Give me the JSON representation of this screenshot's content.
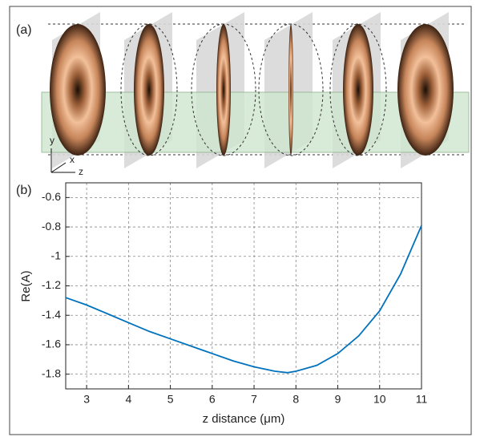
{
  "figure_a": {
    "label": "(a)",
    "axis_labels": {
      "y": "y",
      "x": "x",
      "z": "z"
    }
  },
  "chart_data": {
    "type": "line",
    "panel_label": "(b)",
    "xlabel": "z distance (μm)",
    "ylabel": "Re(A)",
    "x": [
      2.5,
      3,
      3.5,
      4,
      4.5,
      5,
      5.5,
      6,
      6.5,
      7,
      7.5,
      7.8,
      8,
      8.5,
      9,
      9.5,
      10,
      10.5,
      11
    ],
    "series": [
      {
        "color": "#0072bd",
        "values": [
          -1.28,
          -1.33,
          -1.39,
          -1.45,
          -1.51,
          -1.56,
          -1.61,
          -1.66,
          -1.71,
          -1.75,
          -1.78,
          -1.79,
          -1.78,
          -1.74,
          -1.66,
          -1.54,
          -1.37,
          -1.12,
          -0.79
        ]
      }
    ],
    "xlim": [
      2.5,
      11
    ],
    "ylim": [
      -1.9,
      -0.5
    ],
    "xticks": [
      3,
      4,
      5,
      6,
      7,
      8,
      9,
      10,
      11
    ],
    "yticks": [
      -1.8,
      -1.6,
      -1.4,
      -1.2,
      -1,
      -0.8,
      -0.6
    ],
    "grid": true
  }
}
